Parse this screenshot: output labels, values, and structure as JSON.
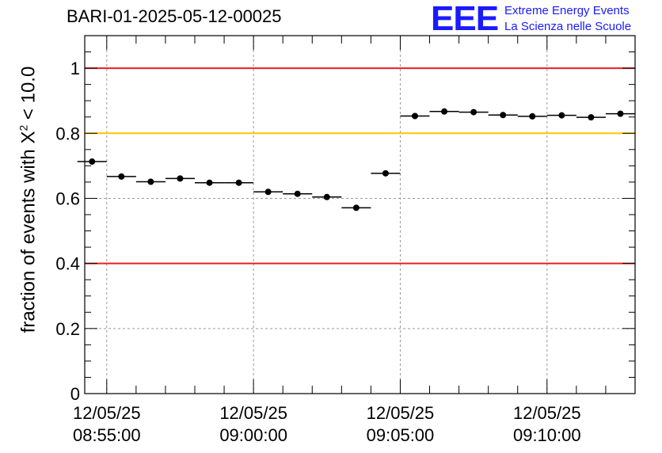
{
  "chart_data": {
    "type": "scatter",
    "title": "BARI-01-2025-05-12-00025",
    "ylabel_main": "fraction of events with X",
    "ylabel_sup": "2",
    "ylabel_tail": "< 10.0",
    "ylim": [
      0,
      1.1
    ],
    "xlim_minutes": [
      0,
      18.75
    ],
    "yticks": [
      "0",
      "0.2",
      "0.4",
      "0.6",
      "0.8",
      "1"
    ],
    "ytick_values": [
      0,
      0.2,
      0.4,
      0.6,
      0.8,
      1.0
    ],
    "xticks": [
      {
        "date": "12/05/25",
        "time": "08:55:00",
        "minute": 0.75
      },
      {
        "date": "12/05/25",
        "time": "09:00:00",
        "minute": 5.75
      },
      {
        "date": "12/05/25",
        "time": "09:05:00",
        "minute": 10.75
      },
      {
        "date": "12/05/25",
        "time": "09:10:00",
        "minute": 15.75
      }
    ],
    "reference_lines": [
      {
        "value": 1.0,
        "color": "#e8201f"
      },
      {
        "value": 0.8,
        "color": "#ffc400"
      },
      {
        "value": 0.4,
        "color": "#e8201f"
      }
    ],
    "bin_width_minutes": 1.0,
    "points": [
      {
        "x": 0.25,
        "y": 0.713
      },
      {
        "x": 1.25,
        "y": 0.667
      },
      {
        "x": 2.25,
        "y": 0.651
      },
      {
        "x": 3.25,
        "y": 0.661
      },
      {
        "x": 4.25,
        "y": 0.648
      },
      {
        "x": 5.25,
        "y": 0.648
      },
      {
        "x": 6.25,
        "y": 0.62
      },
      {
        "x": 7.25,
        "y": 0.614
      },
      {
        "x": 8.25,
        "y": 0.604
      },
      {
        "x": 9.25,
        "y": 0.571
      },
      {
        "x": 10.25,
        "y": 0.677
      },
      {
        "x": 11.25,
        "y": 0.853
      },
      {
        "x": 12.25,
        "y": 0.867
      },
      {
        "x": 13.25,
        "y": 0.865
      },
      {
        "x": 14.25,
        "y": 0.856
      },
      {
        "x": 15.25,
        "y": 0.852
      },
      {
        "x": 16.25,
        "y": 0.855
      },
      {
        "x": 17.25,
        "y": 0.849
      },
      {
        "x": 18.25,
        "y": 0.86
      }
    ],
    "grid": true,
    "marker_color": "#000000",
    "grid_color": "#9a9a9a"
  },
  "logo": {
    "mark": "EEE",
    "line1": "Extreme Energy Events",
    "line2": "La Scienza nelle Scuole",
    "color": "#1a1aff"
  }
}
